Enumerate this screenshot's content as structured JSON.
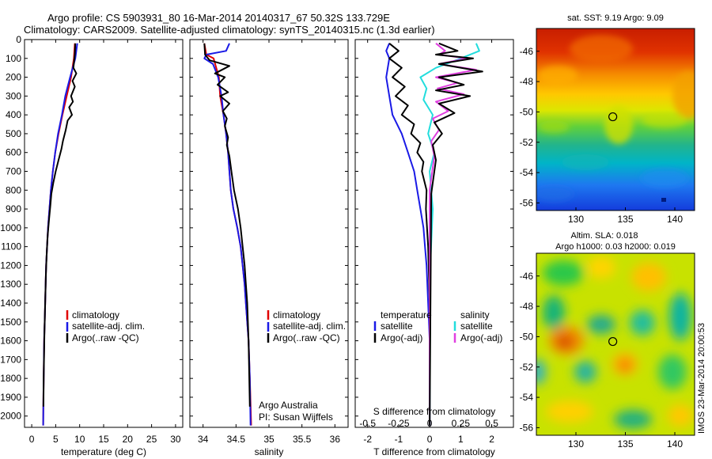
{
  "header": {
    "line1": "Argo profile: CS 5903931_80 16-Mar-2014 20140317_67 50.32S 133.729E",
    "line2": "Climatology: CARS2009. Satellite-adjusted climatology: synTS_20140315.nc (1.3d earlier)"
  },
  "colors": {
    "climatology": "#e00000",
    "satellite": "#1a1ae6",
    "argo": "#000000",
    "salinity_sat": "#22dddd",
    "salinity_argo": "#e040e0"
  },
  "chart_data": [
    {
      "type": "line",
      "name": "temperature-profile",
      "xlabel": "temperature (deg C)",
      "ylabel": "",
      "xlim": [
        -1.5,
        31.5
      ],
      "ylim": [
        2060,
        0
      ],
      "xticks": [
        0,
        5,
        10,
        15,
        20,
        25,
        30
      ],
      "yticks": [
        0,
        100,
        200,
        300,
        400,
        500,
        600,
        700,
        800,
        900,
        1000,
        1100,
        1200,
        1300,
        1400,
        1500,
        1600,
        1700,
        1800,
        1900,
        2000
      ],
      "legend": {
        "placement": "lower-middle",
        "entries": [
          "climatology",
          "satellite-adj. clim.",
          "Argo(..raw -QC)"
        ]
      },
      "series": [
        {
          "name": "climatology",
          "color": "#e00000",
          "x": [
            9.0,
            8.8,
            8.2,
            7.3,
            6.4,
            5.6,
            4.9,
            4.4,
            4.0,
            3.7,
            3.4,
            3.2,
            3.0,
            2.9,
            2.8,
            2.7,
            2.6,
            2.55,
            2.5,
            2.45,
            2.4
          ],
          "y": [
            20,
            100,
            200,
            300,
            400,
            500,
            600,
            700,
            800,
            900,
            1000,
            1100,
            1200,
            1300,
            1400,
            1500,
            1600,
            1700,
            1800,
            1900,
            2050
          ]
        },
        {
          "name": "satellite-adj. clim.",
          "color": "#1a1ae6",
          "x": [
            9.5,
            9.1,
            8.0,
            7.0,
            6.3,
            5.5,
            4.9,
            4.4,
            4.0,
            3.7,
            3.4,
            3.2,
            3.0,
            2.9,
            2.8,
            2.7,
            2.6,
            2.55,
            2.5,
            2.45,
            2.4
          ],
          "y": [
            20,
            100,
            200,
            300,
            400,
            500,
            600,
            700,
            800,
            900,
            1000,
            1100,
            1200,
            1300,
            1400,
            1500,
            1600,
            1700,
            1800,
            1900,
            2050
          ]
        },
        {
          "name": "Argo(..raw -QC)",
          "color": "#000000",
          "x": [
            9.1,
            9.0,
            8.7,
            9.3,
            8.5,
            9.0,
            8.2,
            8.6,
            7.8,
            8.4,
            7.5,
            7.1,
            6.5,
            6.2,
            5.6,
            5.0,
            4.5,
            4.1,
            3.9,
            3.6,
            3.3,
            3.1,
            2.95,
            2.85,
            2.75,
            2.65,
            2.6,
            2.5,
            2.45
          ],
          "y": [
            20,
            80,
            150,
            180,
            220,
            250,
            300,
            330,
            360,
            400,
            430,
            480,
            540,
            580,
            640,
            700,
            760,
            820,
            880,
            960,
            1050,
            1150,
            1250,
            1350,
            1450,
            1550,
            1650,
            1800,
            1950
          ]
        }
      ]
    },
    {
      "type": "line",
      "name": "salinity-profile",
      "xlabel": "salinity",
      "xlim": [
        33.8,
        36.2
      ],
      "ylim": [
        2060,
        0
      ],
      "xticks": [
        34,
        34.5,
        35,
        35.5,
        36
      ],
      "xticklabels": [
        "34",
        "34.5",
        "35",
        "35.5",
        "36"
      ],
      "legend": {
        "placement": "lower-right",
        "entries": [
          "climatology",
          "satellite-adj. clim.",
          "Argo(..raw -QC)"
        ]
      },
      "annotation1": "Argo Australia",
      "annotation2": "PI: Susan Wijffels",
      "series": [
        {
          "name": "climatology",
          "color": "#e00000",
          "x": [
            34.02,
            34.05,
            34.16,
            34.24,
            34.26,
            34.31,
            34.35,
            34.38,
            34.4,
            34.42,
            34.46,
            34.52,
            34.57,
            34.6,
            34.63,
            34.65,
            34.67,
            34.69,
            34.71,
            34.73
          ],
          "y": [
            20,
            80,
            100,
            200,
            300,
            400,
            500,
            600,
            700,
            800,
            900,
            1000,
            1100,
            1200,
            1300,
            1400,
            1500,
            1600,
            1800,
            2050
          ]
        },
        {
          "name": "satellite-adj. clim.",
          "color": "#1a1ae6",
          "x": [
            34.4,
            34.35,
            34.05,
            34.02,
            34.15,
            34.23,
            34.28,
            34.31,
            34.35,
            34.38,
            34.4,
            34.42,
            34.46,
            34.52,
            34.57,
            34.6,
            34.63,
            34.65,
            34.67,
            34.69,
            34.71,
            34.72
          ],
          "y": [
            20,
            60,
            80,
            100,
            130,
            200,
            300,
            400,
            500,
            600,
            700,
            800,
            900,
            1000,
            1100,
            1200,
            1300,
            1400,
            1500,
            1600,
            1800,
            2050
          ]
        },
        {
          "name": "Argo(..raw -QC)",
          "color": "#000000",
          "x": [
            34.02,
            34.03,
            34.1,
            34.4,
            34.18,
            34.33,
            34.22,
            34.38,
            34.26,
            34.4,
            34.3,
            34.36,
            34.33,
            34.38,
            34.36,
            34.4,
            34.43,
            34.47,
            34.53,
            34.57,
            34.6,
            34.63,
            34.65,
            34.67,
            34.69,
            34.71
          ],
          "y": [
            20,
            80,
            110,
            140,
            180,
            200,
            240,
            280,
            300,
            340,
            380,
            420,
            460,
            520,
            560,
            620,
            700,
            800,
            900,
            1000,
            1100,
            1200,
            1300,
            1400,
            1600,
            1950
          ]
        }
      ]
    },
    {
      "type": "line",
      "name": "difference-profile",
      "xlabel": "T difference from climatology",
      "xlabel_top": "S difference from climatology",
      "xlim": [
        -2.4,
        2.7
      ],
      "ylim": [
        2060,
        0
      ],
      "xticks": [
        -2,
        -1,
        0,
        1,
        2
      ],
      "xticklabels": [
        "-2",
        "-1",
        "0",
        "1",
        "2"
      ],
      "sticklabels": [
        "-0.5",
        "-0.25",
        "0",
        "0.25",
        "0.5"
      ],
      "legend": {
        "placement": "lower-middle",
        "groups": [
          {
            "title": "temperature",
            "entries": [
              "satellite",
              "Argo(-adj)"
            ]
          },
          {
            "title": "salinity",
            "entries": [
              "satellite",
              "Argo(-adj)"
            ]
          }
        ]
      },
      "series": [
        {
          "name": "temperature satellite",
          "color": "#1a1ae6",
          "x": [
            -1.3,
            -1.4,
            -1.3,
            -1.4,
            -1.3,
            -1.2,
            -0.9,
            -0.7,
            -0.5,
            -0.4,
            -0.3,
            -0.2,
            -0.15,
            -0.1,
            -0.05,
            0.0,
            0.0
          ],
          "y": [
            20,
            60,
            100,
            200,
            300,
            400,
            500,
            600,
            700,
            800,
            900,
            1000,
            1100,
            1200,
            1400,
            1600,
            2050
          ]
        },
        {
          "name": "temperature Argo(-adj)",
          "color": "#000000",
          "x": [
            -1.3,
            -1.0,
            -1.3,
            -0.9,
            -1.2,
            -0.8,
            -1.1,
            -0.7,
            -0.9,
            -0.5,
            -0.6,
            -0.3,
            -0.4,
            -0.2,
            -0.25,
            -0.1,
            -0.12,
            -0.05,
            0.0,
            0.0
          ],
          "y": [
            20,
            60,
            100,
            150,
            200,
            250,
            300,
            350,
            400,
            450,
            500,
            550,
            600,
            650,
            700,
            800,
            900,
            1100,
            1400,
            2050
          ]
        },
        {
          "name": "salinity satellite",
          "color": "#22dddd",
          "x": [
            1.5,
            1.6,
            1.0,
            0.2,
            -0.3,
            -0.1,
            -0.2,
            0.1,
            -0.05,
            0.15,
            0.0,
            0.1,
            0.02,
            0.0
          ],
          "y": [
            20,
            60,
            100,
            150,
            200,
            260,
            320,
            400,
            500,
            600,
            700,
            900,
            1200,
            2050
          ]
        },
        {
          "name": "salinity Argo(-adj)",
          "color": "#e040e0",
          "x": [
            0.2,
            0.5,
            0.3,
            1.2,
            0.3,
            1.5,
            0.2,
            0.9,
            0.25,
            1.1,
            0.2,
            0.6,
            0.1,
            0.3,
            0.05,
            0.15,
            0.0,
            0.0
          ],
          "y": [
            20,
            60,
            80,
            100,
            130,
            160,
            200,
            230,
            260,
            290,
            330,
            380,
            420,
            480,
            540,
            620,
            800,
            2050
          ]
        },
        {
          "name": "salinity Argo(-adj) black",
          "color": "#000000",
          "x": [
            0.3,
            0.9,
            0.2,
            1.4,
            0.3,
            1.7,
            0.3,
            1.1,
            0.2,
            1.3,
            0.3,
            0.8,
            0.15,
            0.4,
            0.1,
            0.2,
            0.05,
            0.0
          ],
          "y": [
            20,
            60,
            80,
            100,
            130,
            170,
            200,
            240,
            270,
            300,
            340,
            390,
            440,
            500,
            560,
            640,
            820,
            2050
          ]
        }
      ]
    },
    {
      "type": "heatmap",
      "name": "sst-map",
      "title": "sat. SST: 9.19 Argo: 9.09",
      "xlim": [
        126,
        142
      ],
      "ylim": [
        -56.5,
        -44.5
      ],
      "xticks": [
        130,
        135,
        140
      ],
      "yticks": [
        -46,
        -48,
        -50,
        -52,
        -54,
        -56
      ],
      "marker": {
        "lon": 133.729,
        "lat": -50.32
      }
    },
    {
      "type": "heatmap",
      "name": "sla-map",
      "title1": "Altim. SLA: 0.018",
      "title2": "Argo h1000: 0.03 h2000: 0.019",
      "xlim": [
        126,
        142
      ],
      "ylim": [
        -56.5,
        -44.5
      ],
      "xticks": [
        130,
        135,
        140
      ],
      "yticks": [
        -46,
        -48,
        -50,
        -52,
        -54,
        -56
      ],
      "marker": {
        "lon": 133.729,
        "lat": -50.32
      },
      "side_label": "IMOS 23-Mar-2014 20:00:53"
    }
  ]
}
